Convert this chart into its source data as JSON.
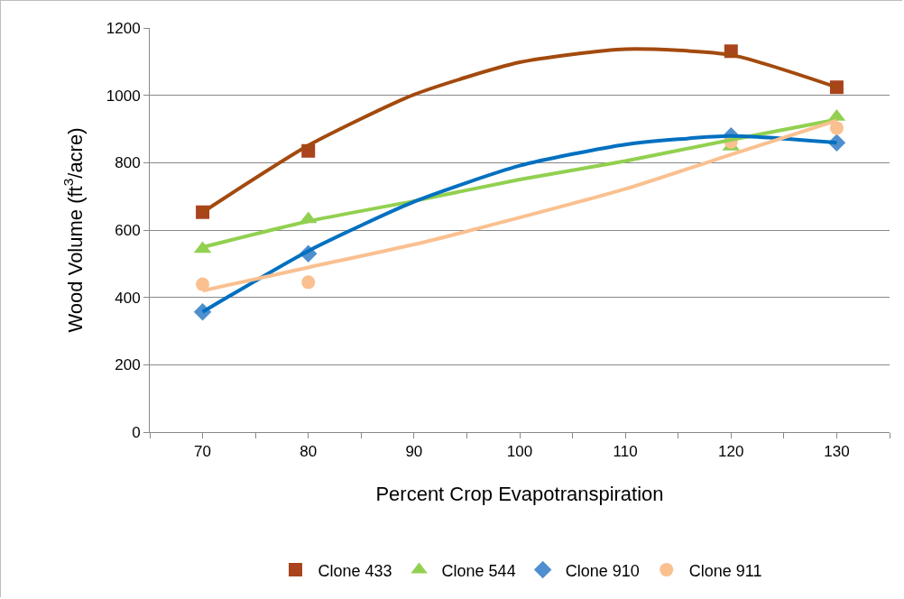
{
  "chart_data": {
    "type": "scatter",
    "xlabel": "Percent Crop Evapotranspiration",
    "ylabel": "Wood Volume (ft$^{3}$/acre)",
    "xlim": [
      65,
      135
    ],
    "xticks": [
      {
        "value": 65,
        "label": null
      },
      70,
      {
        "value": 75,
        "label": null
      },
      80,
      {
        "value": 85,
        "label": null
      },
      90,
      {
        "value": 95,
        "label": null
      },
      100,
      {
        "value": 105,
        "label": null
      },
      110,
      {
        "value": 115,
        "label": null
      },
      120,
      {
        "value": 125,
        "label": null
      },
      130,
      {
        "value": 135,
        "label": null
      }
    ],
    "ylim": [
      0,
      1200
    ],
    "yticks": [
      0,
      200,
      400,
      600,
      800,
      1000,
      1200
    ],
    "grid": "y",
    "legend": "bottom",
    "series": [
      {
        "name": "Clone 433",
        "marker": "square",
        "color": "#a9441c",
        "x": [
          70,
          80,
          120,
          130
        ],
        "values": [
          653,
          835,
          1131,
          1024
        ]
      },
      {
        "name": "Clone 544",
        "marker": "triangle",
        "color": "#92d050",
        "x": [
          70,
          80,
          120,
          130
        ],
        "values": [
          544,
          632,
          848,
          936
        ]
      },
      {
        "name": "Clone 910",
        "marker": "diamond",
        "color": "#4f8fcf",
        "x": [
          70,
          80,
          120,
          130
        ],
        "values": [
          357,
          530,
          879,
          859
        ]
      },
      {
        "name": "Clone 911",
        "marker": "circle",
        "color": "#fac090",
        "x": [
          70,
          80,
          120,
          130
        ],
        "values": [
          439,
          445,
          862,
          903
        ]
      },
      {
        "type": "line",
        "marker": "none",
        "color": "#a34a0e",
        "x": [
          70,
          80,
          90,
          100,
          110,
          120,
          130
        ],
        "values": [
          653,
          851,
          1002,
          1098,
          1137,
          1120,
          1024
        ]
      },
      {
        "type": "line",
        "marker": "none",
        "color": "#92d050",
        "x": [
          70,
          80,
          90,
          100,
          110,
          120,
          130
        ],
        "values": [
          549,
          626,
          686,
          750,
          805,
          868,
          928
        ]
      },
      {
        "type": "line",
        "marker": "none",
        "color": "#0070c0",
        "x": [
          70,
          80,
          90,
          100,
          110,
          120,
          130
        ],
        "values": [
          357,
          538,
          684,
          791,
          854,
          879,
          859
        ]
      },
      {
        "type": "line",
        "marker": "none",
        "color": "#fac090",
        "x": [
          70,
          80,
          90,
          100,
          110,
          120,
          130
        ],
        "values": [
          420,
          489,
          557,
          637,
          722,
          824,
          925
        ]
      }
    ]
  }
}
